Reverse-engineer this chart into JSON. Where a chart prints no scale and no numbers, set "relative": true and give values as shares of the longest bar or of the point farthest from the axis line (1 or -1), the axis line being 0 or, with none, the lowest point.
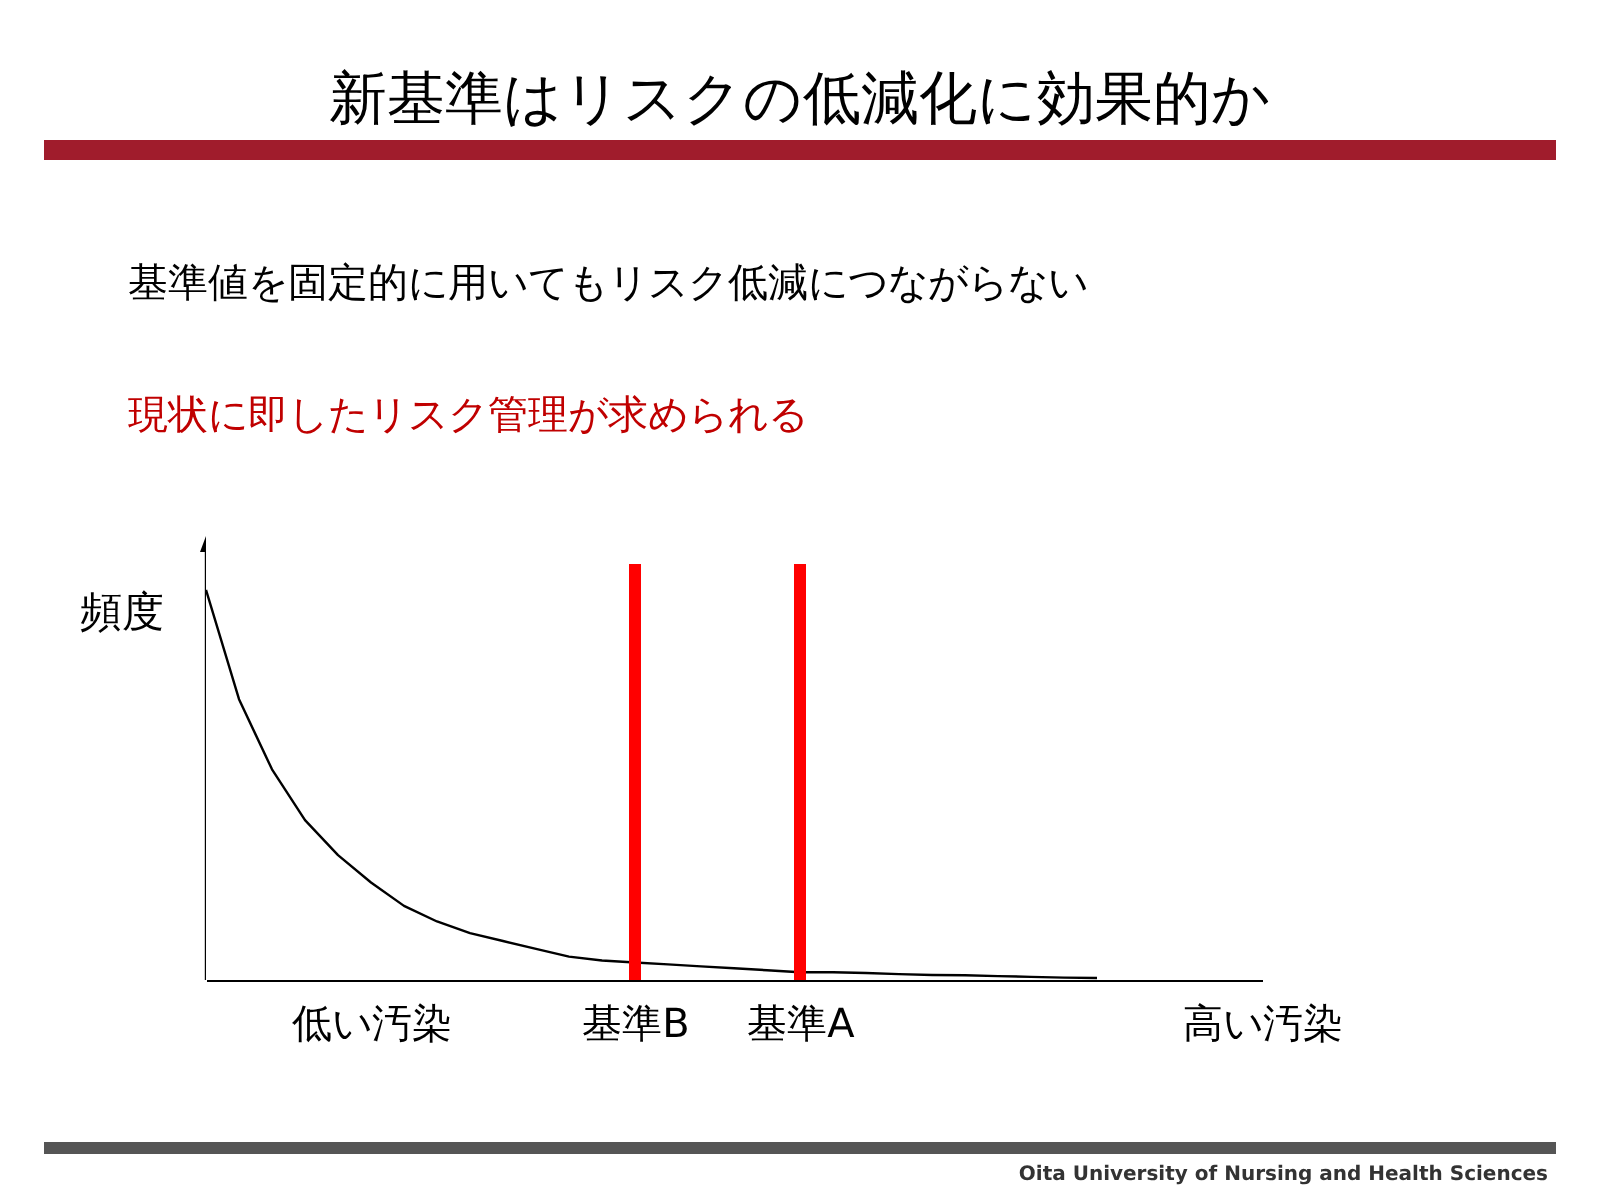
{
  "chart_data": {
    "type": "line",
    "title": "新基準はリスクの低減化に効果的か",
    "subtitle": "基準値を固定的に用いてもリスク低減につながらない",
    "annotations": [
      "現状に即したリスク管理が求められる",
      "Oita University of Nursing and Health Sciences"
    ],
    "ylabel": "頻度",
    "relative": true,
    "categories": [
      null,
      null,
      null,
      null,
      null,
      "低い汚染",
      null,
      null,
      null,
      null,
      null,
      null,
      null,
      "基準B",
      null,
      null,
      null,
      null,
      "基準A",
      null,
      null,
      null,
      null,
      null,
      null,
      null,
      null,
      null,
      null,
      null,
      null,
      null,
      "高い汚染"
    ],
    "series": [
      {
        "color": "#000000",
        "values": [
          1.0,
          0.72,
          0.54,
          0.41,
          0.32,
          0.25,
          0.19,
          0.15,
          0.12,
          0.1,
          0.08,
          0.06,
          0.05,
          0.045,
          0.04,
          0.035,
          0.03,
          0.025,
          0.02,
          0.02,
          0.018,
          0.015,
          0.013,
          0.012,
          0.01,
          0.008,
          0.006,
          0.005,
          null,
          null,
          null,
          null,
          null
        ]
      }
    ],
    "ref_lines": [
      {
        "axis": "x",
        "value": "基準B",
        "color": "#ff0000"
      },
      {
        "axis": "x",
        "value": "基準A",
        "color": "#ff0000"
      }
    ],
    "line_style": "solid",
    "marker": "none",
    "grid": false
  }
}
